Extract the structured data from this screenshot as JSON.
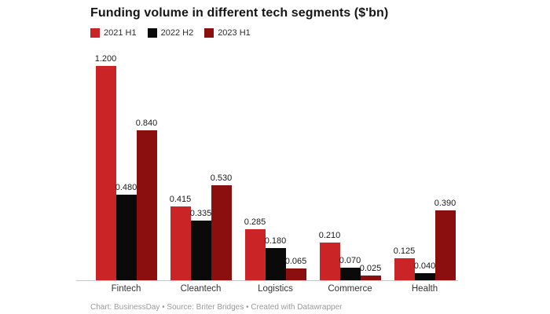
{
  "title": "Funding volume in different tech segments ($'bn)",
  "footer": "Chart: BusinessDay • Source: Briter Bridges • Created with Datawrapper",
  "legend": [
    {
      "label": "2021 H1",
      "color": "#cb2427"
    },
    {
      "label": "2022 H2",
      "color": "#0a0a0a"
    },
    {
      "label": "2023 H1",
      "color": "#8b0f0f"
    }
  ],
  "colors": {
    "series_2021_h1": "#cb2427",
    "series_2022_h2": "#0a0a0a",
    "series_2023_h1": "#8b0f0f",
    "axis_line": "#c6c6c6",
    "background": "#ffffff"
  },
  "chart_data": {
    "type": "bar",
    "title": "Funding volume in different tech segments ($'bn)",
    "categories": [
      "Fintech",
      "Cleantech",
      "Logistics",
      "Commerce",
      "Health"
    ],
    "series": [
      {
        "name": "2021 H1",
        "color": "#cb2427",
        "values": [
          1.2,
          0.415,
          0.285,
          0.21,
          0.125
        ]
      },
      {
        "name": "2022 H2",
        "color": "#0a0a0a",
        "values": [
          0.48,
          0.335,
          0.18,
          0.07,
          0.04
        ]
      },
      {
        "name": "2023 H1",
        "color": "#8b0f0f",
        "values": [
          0.84,
          0.53,
          0.065,
          0.025,
          0.39
        ]
      }
    ],
    "value_label_decimals": 3,
    "xlabel": "",
    "ylabel": "",
    "ylim": [
      0,
      1.2
    ],
    "grid": false,
    "y_axis_visible": false,
    "legend_position": "top-left"
  }
}
